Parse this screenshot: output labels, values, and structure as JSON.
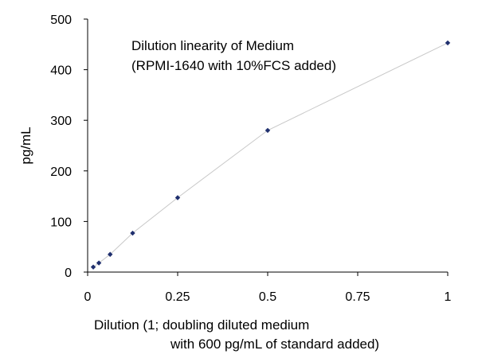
{
  "chart_data": {
    "type": "scatter",
    "title": "",
    "annotation_lines": [
      "Dilution linearity of Medium",
      "(RPMI-1640 with 10%FCS added)"
    ],
    "xlabel_lines": [
      "Dilution (1; doubling diluted medium",
      "with 600 pg/mL of standard added)"
    ],
    "ylabel": "pg/mL",
    "xlim": [
      0,
      1
    ],
    "ylim": [
      0,
      500
    ],
    "x_ticks": [
      "0",
      "0.25",
      "0.5",
      "0.75",
      "1"
    ],
    "y_ticks": [
      "0",
      "100",
      "200",
      "300",
      "400",
      "500"
    ],
    "grid": false,
    "connecting_line": true,
    "series": [
      {
        "x": [
          0.015625,
          0.03125,
          0.0625,
          0.125,
          0.25,
          0.5,
          1
        ],
        "y": [
          10,
          18,
          35,
          77,
          147,
          280,
          453
        ]
      }
    ],
    "colors": {
      "marker": "#1f2f6e",
      "line": "#c8c8c8",
      "axis": "#000000"
    }
  }
}
